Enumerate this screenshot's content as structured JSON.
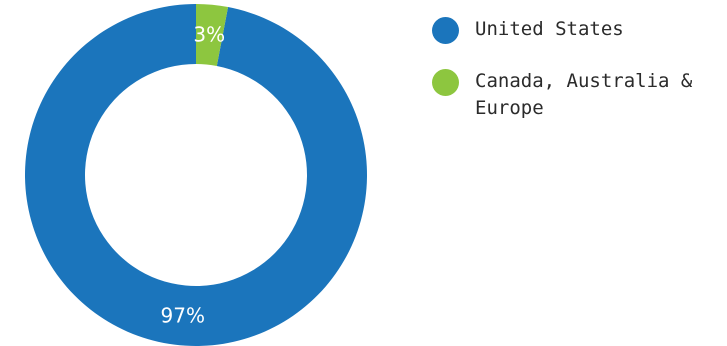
{
  "chart_data": {
    "type": "pie",
    "donut": true,
    "categories": [
      "United States",
      "Canada, Australia & Europe"
    ],
    "values": [
      97,
      3
    ],
    "value_labels": [
      "97%",
      "3%"
    ],
    "colors": [
      "#1b75bc",
      "#8dc63f"
    ],
    "start_angle_deg": 0,
    "direction": "counterclockwise",
    "legend_position": "right"
  }
}
